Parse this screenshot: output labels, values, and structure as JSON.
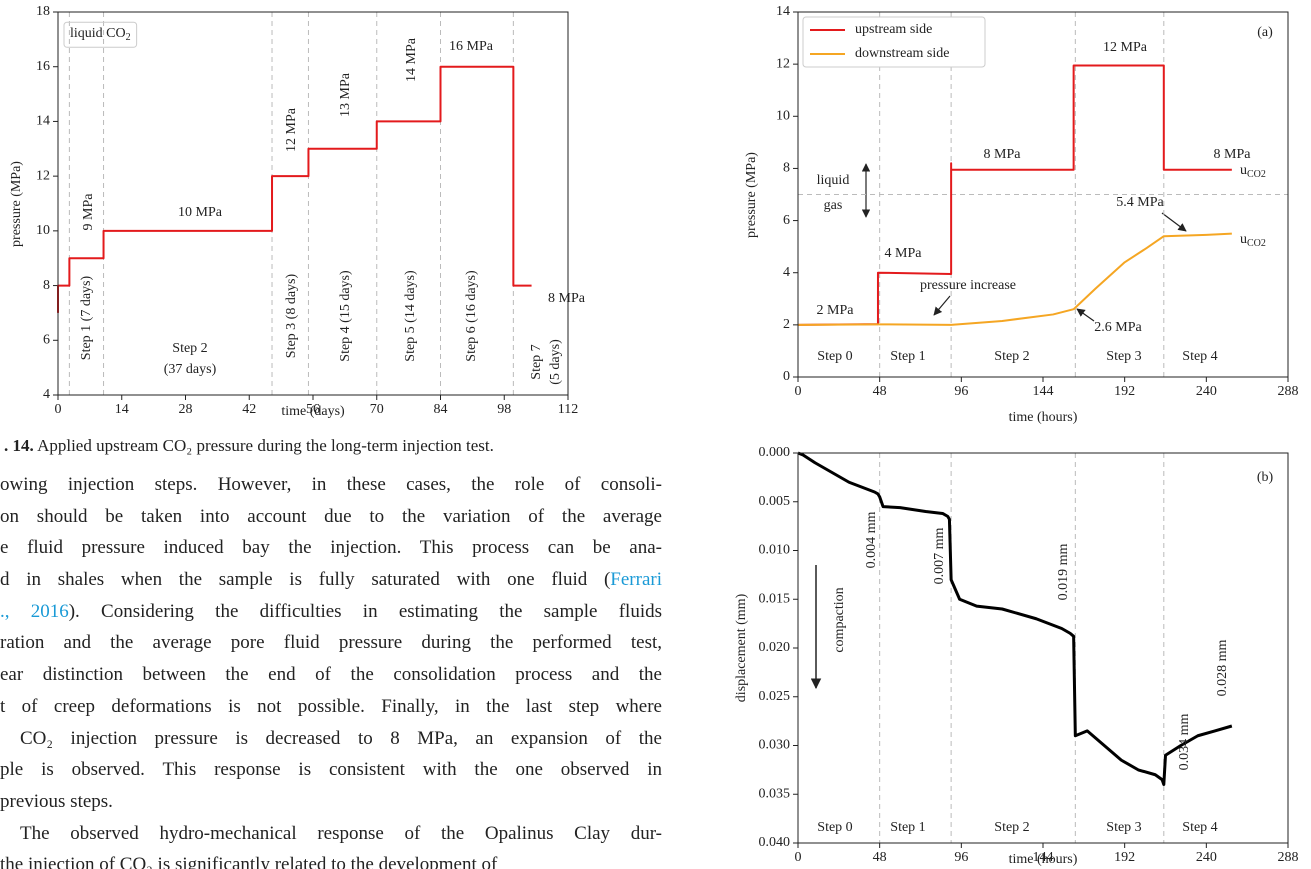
{
  "chart_data": [
    {
      "type": "line",
      "xlabel": "time (days)",
      "ylabel": "pressure (MPa)",
      "xlim": [
        0,
        112
      ],
      "ylim": [
        4,
        18
      ],
      "xticks": [
        0,
        14,
        28,
        42,
        56,
        70,
        84,
        98,
        112
      ],
      "yticks": [
        4,
        6,
        8,
        10,
        12,
        14,
        16,
        18
      ],
      "vlines": [
        2.5,
        10,
        47,
        55,
        70,
        84,
        100
      ],
      "series": [
        {
          "color": "#e31a1c",
          "x": [
            0,
            0,
            2.5,
            2.5,
            10,
            10,
            47,
            47,
            55,
            55,
            70,
            70,
            84,
            84,
            100,
            100,
            104
          ],
          "values": [
            7,
            8,
            8,
            9,
            9,
            10,
            10,
            12,
            12,
            13,
            13,
            14,
            14,
            16,
            16,
            8,
            8
          ]
        }
      ],
      "annotations": [
        {
          "text": "liquid CO",
          "sub": "2"
        },
        {
          "text": "9 MPa"
        },
        {
          "text": "10 MPa"
        },
        {
          "text": "12 MPa"
        },
        {
          "text": "13 MPa"
        },
        {
          "text": "14 MPa"
        },
        {
          "text": "16 MPa"
        },
        {
          "text": "8 MPa"
        },
        {
          "text": "Step 1 (7 days)"
        },
        {
          "text": "Step 2"
        },
        {
          "text": "(37 days)"
        },
        {
          "text": "Step 3 (8 days)"
        },
        {
          "text": "Step 4 (15 days)"
        },
        {
          "text": "Step 5 (14 days)"
        },
        {
          "text": "Step 6 (16 days)"
        },
        {
          "text": "Step 7"
        },
        {
          "text": "(5 days)"
        }
      ]
    },
    {
      "type": "line",
      "xlabel": "time (hours)",
      "ylabel": "pressure (MPa)",
      "xlim": [
        0,
        288
      ],
      "ylim": [
        0,
        14
      ],
      "xticks": [
        0,
        48,
        96,
        144,
        192,
        240,
        288
      ],
      "yticks": [
        0,
        2,
        4,
        6,
        8,
        10,
        12,
        14
      ],
      "vlines": [
        48,
        90,
        163,
        215
      ],
      "hlines": [
        7
      ],
      "series": [
        {
          "name": "upstream side",
          "color": "#e31a1c",
          "x": [
            0,
            47,
            47,
            90,
            90,
            90,
            162,
            162,
            215,
            215,
            255
          ],
          "values": [
            2,
            2.03,
            4,
            3.95,
            8.2,
            7.95,
            7.95,
            11.95,
            11.95,
            7.95,
            7.95
          ]
        },
        {
          "name": "downstream side",
          "color": "#f5a623",
          "x": [
            0,
            48,
            90,
            120,
            150,
            162,
            175,
            192,
            205,
            215,
            240,
            255
          ],
          "values": [
            2,
            2.02,
            2,
            2.15,
            2.4,
            2.6,
            3.4,
            4.4,
            4.95,
            5.4,
            5.45,
            5.5
          ]
        }
      ],
      "annotations": [
        {
          "text": "liquid"
        },
        {
          "text": "gas"
        },
        {
          "text": "2 MPa"
        },
        {
          "text": "4 MPa"
        },
        {
          "text": "8 MPa"
        },
        {
          "text": "12 MPa"
        },
        {
          "text": "8 MPa"
        },
        {
          "text": "u",
          "sub": "CO2"
        },
        {
          "text": "u",
          "sub": "CO2"
        },
        {
          "text": "5.4 MPa"
        },
        {
          "text": "pressure increase"
        },
        {
          "text": "2.6 MPa"
        },
        {
          "text": "(a)"
        },
        {
          "text": "Step 0"
        },
        {
          "text": "Step 1"
        },
        {
          "text": "Step 2"
        },
        {
          "text": "Step 3"
        },
        {
          "text": "Step 4"
        }
      ]
    },
    {
      "type": "line",
      "xlabel": "time (hours)",
      "ylabel": "displacement (mm)",
      "xlim": [
        0,
        288
      ],
      "ylim": [
        0.04,
        0
      ],
      "xticks": [
        0,
        48,
        96,
        144,
        192,
        240,
        288
      ],
      "yticks": [
        {
          "value": 0,
          "label": "0.000"
        },
        {
          "value": 0.005,
          "label": "0.005"
        },
        {
          "value": 0.01,
          "label": "0.010"
        },
        {
          "value": 0.015,
          "label": "0.015"
        },
        {
          "value": 0.02,
          "label": "0.020"
        },
        {
          "value": 0.025,
          "label": "0.025"
        },
        {
          "value": 0.03,
          "label": "0.030"
        },
        {
          "value": 0.035,
          "label": "0.035"
        },
        {
          "value": 0.04,
          "label": "0.040"
        }
      ],
      "vlines": [
        48,
        90,
        163,
        215
      ],
      "series": [
        {
          "color": "#000000",
          "x": [
            0,
            3,
            10,
            20,
            30,
            45,
            47,
            48,
            50,
            60,
            75,
            85,
            88,
            89,
            90,
            95,
            105,
            120,
            140,
            155,
            160,
            162,
            163,
            170,
            180,
            190,
            200,
            210,
            214,
            215,
            216,
            225,
            235,
            245,
            255
          ],
          "values": [
            0,
            0.0002,
            0.001,
            0.002,
            0.003,
            0.004,
            0.0042,
            0.0045,
            0.0055,
            0.0056,
            0.006,
            0.0062,
            0.0065,
            0.0068,
            0.013,
            0.015,
            0.0157,
            0.016,
            0.017,
            0.018,
            0.0185,
            0.0188,
            0.029,
            0.0285,
            0.03,
            0.0315,
            0.0325,
            0.033,
            0.0335,
            0.034,
            0.031,
            0.03,
            0.029,
            0.0285,
            0.028
          ]
        }
      ],
      "annotations": [
        {
          "text": "0.004 mm"
        },
        {
          "text": "0.007 mm"
        },
        {
          "text": "0.019 mm"
        },
        {
          "text": "0.034 mm"
        },
        {
          "text": "0.028 mm"
        },
        {
          "text": "compaction"
        },
        {
          "text": "(b)"
        },
        {
          "text": "Step 0"
        },
        {
          "text": "Step 1"
        },
        {
          "text": "Step 2"
        },
        {
          "text": "Step 3"
        },
        {
          "text": "Step 4"
        }
      ]
    }
  ],
  "caption": {
    "label": ". 14.",
    "text": "Applied upstream CO₂ pressure during the long-term injection test."
  },
  "body": {
    "lines": [
      [
        {
          "text": "owing injection steps. However, in these cases, the role of consoli-"
        }
      ],
      [
        {
          "text": "on should be taken into account due to the variation of the average"
        }
      ],
      [
        {
          "text": "e fluid pressure induced bay the injection. This process can be ana-"
        }
      ],
      [
        {
          "text": "d in shales when the sample is fully saturated with one fluid ("
        },
        {
          "text": "Ferrari",
          "link": true
        }
      ],
      [
        {
          "text": "., 2016",
          "link": true
        },
        {
          "text": "). Considering the difficulties in estimating the sample fluids"
        }
      ],
      [
        {
          "text": "ration and the average pore fluid pressure during the performed test,"
        }
      ],
      [
        {
          "text": "ear distinction between the end of the consolidation process and the"
        }
      ],
      [
        {
          "text": "t of creep deformations is not possible. Finally, in the last step where"
        }
      ],
      [
        {
          "text": "CO₂ injection pressure is decreased to 8 MPa, an expansion of the"
        }
      ],
      [
        {
          "text": "ple is observed. This response is consistent with the one observed in"
        }
      ],
      [
        {
          "text": "previous steps."
        }
      ],
      [
        {
          "text": "The observed hydro-mechanical response of the Opalinus Clay dur-"
        }
      ],
      [
        {
          "text": "the injection of CO₂ is significantly related to the development of"
        }
      ]
    ]
  }
}
